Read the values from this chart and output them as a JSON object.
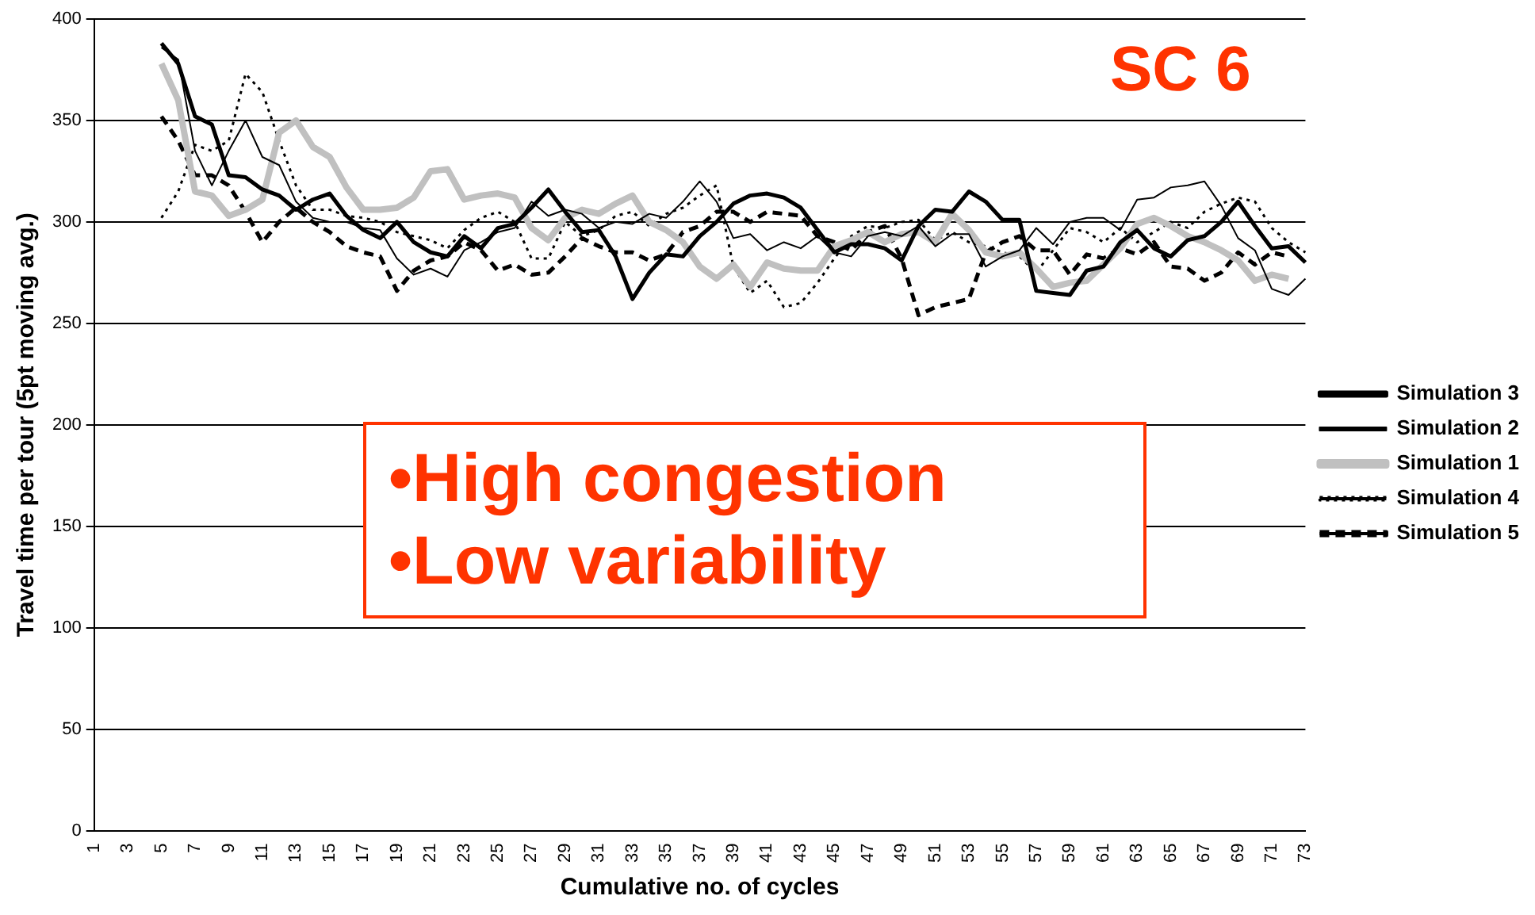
{
  "chart_data": {
    "type": "line",
    "xlabel": "Cumulative no. of cycles",
    "ylabel": "Travel time per tour (5pt moving avg.)",
    "categories": [
      "1",
      null,
      "3",
      null,
      "5",
      null,
      "7",
      null,
      "9",
      null,
      "11",
      null,
      "13",
      null,
      "15",
      null,
      "17",
      null,
      "19",
      null,
      "21",
      null,
      "23",
      null,
      "25",
      null,
      "27",
      null,
      "29",
      null,
      "31",
      null,
      "33",
      null,
      "35",
      null,
      "37",
      null,
      "39",
      null,
      "41",
      null,
      "43",
      null,
      "45",
      null,
      "47",
      null,
      "49",
      null,
      "51",
      null,
      "53",
      null,
      "55",
      null,
      "57",
      null,
      "59",
      null,
      "61",
      null,
      "63",
      null,
      "65",
      null,
      "67",
      null,
      "69",
      null,
      "71",
      null,
      "73"
    ],
    "series": [
      {
        "name": "Simulation 3",
        "color": "#000000",
        "line_style": "solid",
        "values": [
          null,
          null,
          null,
          null,
          388,
          378,
          352,
          348,
          323,
          322,
          316,
          313,
          306,
          311,
          314,
          303,
          296,
          292,
          300,
          290,
          285,
          283,
          293,
          287,
          297,
          299,
          307,
          316,
          305,
          295,
          296,
          283,
          262,
          275,
          284,
          283,
          293,
          300,
          309,
          313,
          314,
          312,
          307,
          296,
          285,
          289,
          289,
          287,
          281,
          298,
          306,
          305,
          315,
          310,
          301,
          301,
          266,
          265,
          264,
          276,
          278,
          290,
          296,
          287,
          283,
          291,
          293,
          300,
          310,
          298,
          287,
          288,
          280
        ]
      },
      {
        "name": "Simulation 2",
        "color": "#000000",
        "line_style": "solid",
        "values": [
          null,
          null,
          null,
          null,
          386,
          380,
          335,
          318,
          335,
          350,
          332,
          328,
          310,
          302,
          300,
          300,
          297,
          296,
          282,
          274,
          277,
          273,
          286,
          290,
          295,
          297,
          310,
          303,
          306,
          304,
          297,
          300,
          299,
          304,
          302,
          310,
          320,
          310,
          292,
          294,
          286,
          290,
          287,
          293,
          285,
          283,
          293,
          295,
          293,
          298,
          288,
          294,
          294,
          278,
          283,
          286,
          297,
          289,
          300,
          302,
          302,
          296,
          311,
          312,
          317,
          318,
          320,
          308,
          292,
          286,
          267,
          264,
          272
        ]
      },
      {
        "name": "Simulation 1",
        "color": "#c0c0c0",
        "line_style": "solid",
        "values": [
          null,
          null,
          null,
          null,
          378,
          360,
          315,
          313,
          303,
          306,
          311,
          344,
          350,
          337,
          332,
          317,
          306,
          306,
          307,
          312,
          325,
          326,
          311,
          313,
          314,
          312,
          297,
          291,
          302,
          306,
          304,
          309,
          313,
          300,
          296,
          290,
          278,
          272,
          279,
          268,
          280,
          277,
          276,
          276,
          288,
          291,
          295,
          290,
          294,
          295,
          290,
          304,
          296,
          285,
          283,
          285,
          277,
          268,
          270,
          271,
          279,
          287,
          299,
          302,
          298,
          293,
          290,
          286,
          281,
          271,
          274,
          272,
          null
        ]
      },
      {
        "name": "Simulation 4",
        "color": "#000000",
        "line_style": "dotted",
        "values": [
          null,
          null,
          null,
          null,
          302,
          315,
          338,
          335,
          340,
          373,
          364,
          340,
          318,
          306,
          306,
          303,
          302,
          300,
          295,
          293,
          291,
          287,
          296,
          302,
          305,
          300,
          282,
          282,
          300,
          293,
          296,
          303,
          305,
          298,
          304,
          307,
          313,
          318,
          278,
          265,
          271,
          258,
          260,
          270,
          282,
          293,
          298,
          297,
          300,
          301,
          291,
          295,
          290,
          288,
          285,
          283,
          275,
          286,
          297,
          295,
          290,
          297,
          290,
          295,
          300,
          297,
          305,
          309,
          312,
          310,
          297,
          290,
          285
        ]
      },
      {
        "name": "Simulation 5",
        "color": "#000000",
        "line_style": "dashed",
        "values": [
          null,
          null,
          null,
          null,
          352,
          340,
          323,
          323,
          318,
          305,
          290,
          300,
          307,
          300,
          295,
          288,
          285,
          283,
          266,
          276,
          281,
          283,
          290,
          286,
          276,
          279,
          274,
          275,
          283,
          292,
          288,
          285,
          285,
          281,
          284,
          295,
          298,
          305,
          305,
          300,
          305,
          304,
          303,
          293,
          290,
          286,
          295,
          298,
          282,
          254,
          258,
          260,
          262,
          285,
          290,
          293,
          286,
          286,
          274,
          284,
          282,
          287,
          284,
          290,
          278,
          277,
          271,
          275,
          285,
          279,
          285,
          283,
          null
        ]
      }
    ],
    "ylim": [
      0,
      400
    ],
    "yticks": [
      0,
      50,
      100,
      150,
      200,
      250,
      300,
      350,
      400
    ],
    "grid": "y",
    "legend": "right",
    "marker": "none",
    "annotations": [
      "SC 6",
      "•High congestion",
      "•Low variability"
    ]
  }
}
